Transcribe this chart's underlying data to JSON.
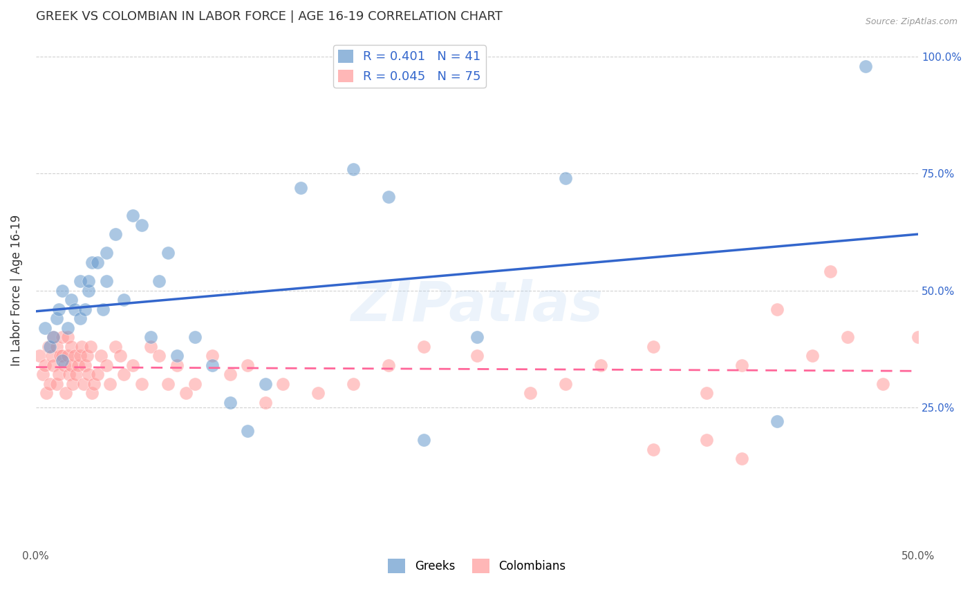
{
  "title": "GREEK VS COLOMBIAN IN LABOR FORCE | AGE 16-19 CORRELATION CHART",
  "source": "Source: ZipAtlas.com",
  "ylabel": "In Labor Force | Age 16-19",
  "xlim": [
    0.0,
    0.5
  ],
  "ylim_min": -0.05,
  "ylim_max": 1.05,
  "xticks": [
    0.0,
    0.1,
    0.2,
    0.3,
    0.4,
    0.5
  ],
  "xticklabels": [
    "0.0%",
    "",
    "",
    "",
    "",
    "50.0%"
  ],
  "yticks": [
    0.25,
    0.5,
    0.75,
    1.0
  ],
  "yticklabels": [
    "25.0%",
    "50.0%",
    "75.0%",
    "100.0%"
  ],
  "greek_color": "#6699CC",
  "colombian_color": "#FF9999",
  "greek_line_color": "#3366CC",
  "colombian_line_color": "#FF6699",
  "watermark": "ZIPatlas",
  "legend_R_greek": "0.401",
  "legend_N_greek": "41",
  "legend_R_colombian": "0.045",
  "legend_N_colombian": "75",
  "greek_scatter_x": [
    0.005,
    0.008,
    0.01,
    0.012,
    0.013,
    0.015,
    0.015,
    0.018,
    0.02,
    0.022,
    0.025,
    0.025,
    0.028,
    0.03,
    0.03,
    0.032,
    0.035,
    0.038,
    0.04,
    0.04,
    0.045,
    0.05,
    0.055,
    0.06,
    0.065,
    0.07,
    0.075,
    0.08,
    0.09,
    0.1,
    0.11,
    0.12,
    0.13,
    0.15,
    0.18,
    0.2,
    0.22,
    0.25,
    0.3,
    0.42,
    0.47
  ],
  "greek_scatter_y": [
    0.42,
    0.38,
    0.4,
    0.44,
    0.46,
    0.35,
    0.5,
    0.42,
    0.48,
    0.46,
    0.44,
    0.52,
    0.46,
    0.5,
    0.52,
    0.56,
    0.56,
    0.46,
    0.52,
    0.58,
    0.62,
    0.48,
    0.66,
    0.64,
    0.4,
    0.52,
    0.58,
    0.36,
    0.4,
    0.34,
    0.26,
    0.2,
    0.3,
    0.72,
    0.76,
    0.7,
    0.18,
    0.4,
    0.74,
    0.22,
    0.98
  ],
  "colombian_scatter_x": [
    0.002,
    0.004,
    0.005,
    0.006,
    0.007,
    0.008,
    0.009,
    0.01,
    0.01,
    0.012,
    0.012,
    0.013,
    0.014,
    0.015,
    0.015,
    0.016,
    0.017,
    0.018,
    0.018,
    0.019,
    0.02,
    0.02,
    0.021,
    0.022,
    0.023,
    0.024,
    0.025,
    0.026,
    0.027,
    0.028,
    0.029,
    0.03,
    0.031,
    0.032,
    0.033,
    0.035,
    0.037,
    0.04,
    0.042,
    0.045,
    0.048,
    0.05,
    0.055,
    0.06,
    0.065,
    0.07,
    0.075,
    0.08,
    0.085,
    0.09,
    0.1,
    0.11,
    0.12,
    0.13,
    0.14,
    0.16,
    0.18,
    0.2,
    0.22,
    0.25,
    0.28,
    0.3,
    0.32,
    0.35,
    0.38,
    0.4,
    0.42,
    0.44,
    0.46,
    0.48,
    0.5,
    0.35,
    0.38,
    0.4,
    0.45
  ],
  "colombian_scatter_y": [
    0.36,
    0.32,
    0.34,
    0.28,
    0.38,
    0.3,
    0.36,
    0.4,
    0.34,
    0.3,
    0.38,
    0.32,
    0.36,
    0.36,
    0.4,
    0.34,
    0.28,
    0.36,
    0.4,
    0.32,
    0.34,
    0.38,
    0.3,
    0.36,
    0.32,
    0.34,
    0.36,
    0.38,
    0.3,
    0.34,
    0.36,
    0.32,
    0.38,
    0.28,
    0.3,
    0.32,
    0.36,
    0.34,
    0.3,
    0.38,
    0.36,
    0.32,
    0.34,
    0.3,
    0.38,
    0.36,
    0.3,
    0.34,
    0.28,
    0.3,
    0.36,
    0.32,
    0.34,
    0.26,
    0.3,
    0.28,
    0.3,
    0.34,
    0.38,
    0.36,
    0.28,
    0.3,
    0.34,
    0.38,
    0.28,
    0.34,
    0.46,
    0.36,
    0.4,
    0.3,
    0.4,
    0.16,
    0.18,
    0.14,
    0.54
  ],
  "background_color": "#FFFFFF",
  "grid_color": "#CCCCCC"
}
